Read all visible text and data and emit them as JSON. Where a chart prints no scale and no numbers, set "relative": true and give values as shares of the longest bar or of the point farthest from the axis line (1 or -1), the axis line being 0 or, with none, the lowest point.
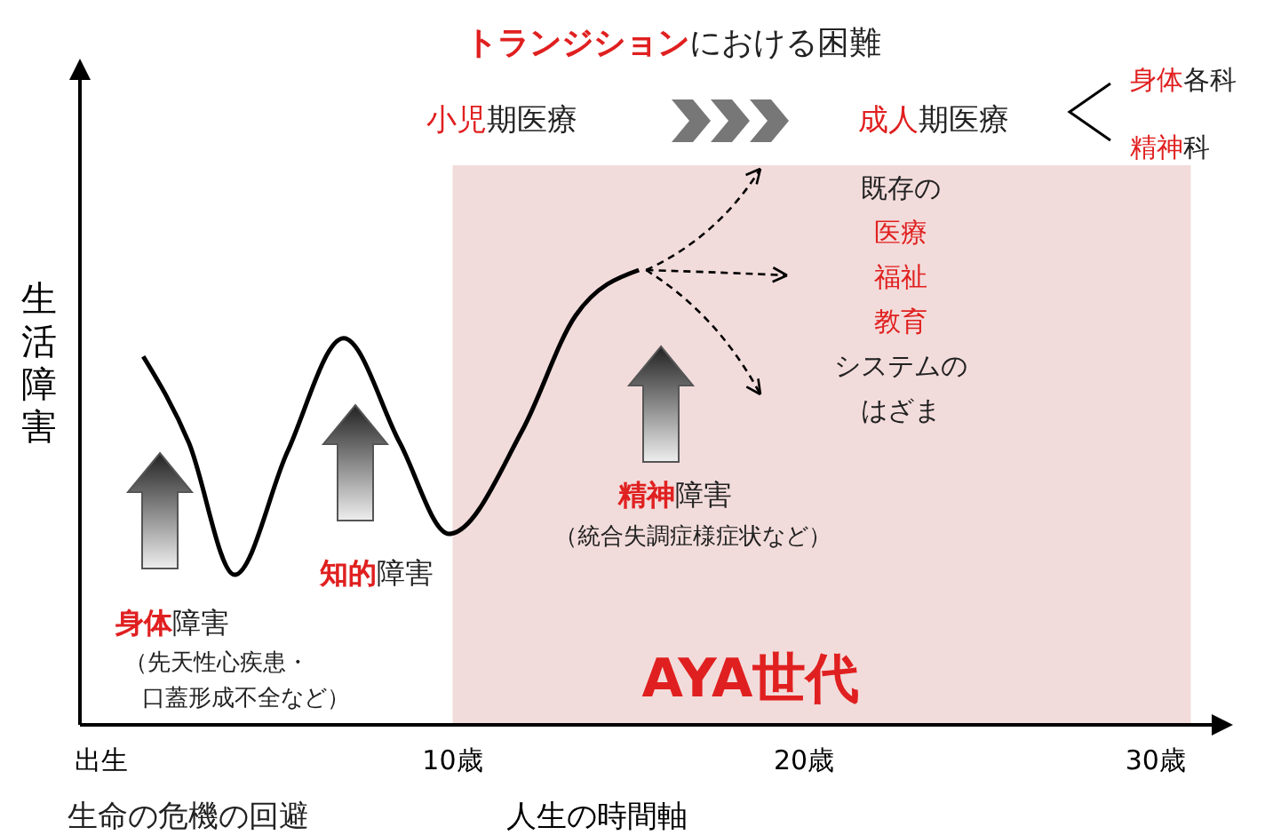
{
  "chart_data": {
    "type": "line",
    "relative": true,
    "ylabel": "生活障害",
    "xlabel": "人生の時間軸",
    "xlim": [
      -0.6,
      32
    ],
    "xticks": [
      {
        "value": 0,
        "label": "出生"
      },
      {
        "value": 10,
        "label": "10歳"
      },
      {
        "value": 20,
        "label": "20歳"
      },
      {
        "value": 30,
        "label": "30歳"
      }
    ],
    "x": [
      1.2,
      2.5,
      3.8,
      5.3,
      6.9,
      8.5,
      9.9,
      12,
      13.5,
      15.3
    ],
    "series": [
      {
        "color": "#000000",
        "values": [
          0.81,
          0.62,
          0.33,
          0.6,
          0.85,
          0.62,
          0.42,
          0.65,
          0.9,
          1.0
        ]
      }
    ],
    "bands": [
      {
        "axis": "x",
        "from": 10,
        "to": 31,
        "label": "AYA世代",
        "color": "#f2dcdb"
      }
    ],
    "annotations": [
      "トランジション",
      "における困難",
      "小児",
      "期医療",
      "成人",
      "期医療",
      "身体",
      "各科",
      "精神",
      "科",
      "既存の",
      "医療",
      "福祉",
      "教育",
      "システムの",
      "はざま",
      "精神",
      "障害",
      "（統合失調症様症状など）",
      "知的",
      "障害",
      "身体",
      "障害",
      "（先天性心疾患・",
      "口蓋形成不全など）",
      "生命の危機の回避"
    ]
  }
}
